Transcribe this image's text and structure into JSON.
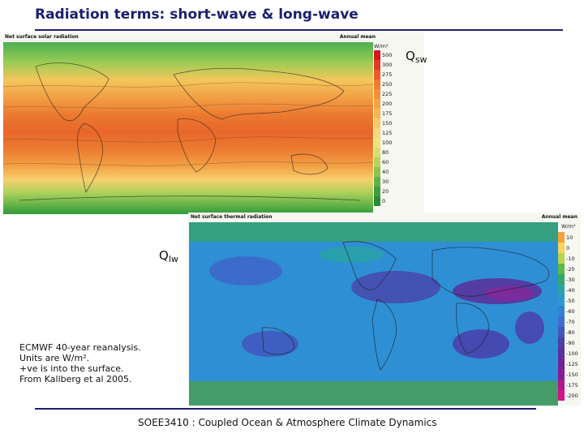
{
  "slide": {
    "title": "Radiation terms: short-wave & long-wave",
    "footer": "SOEE3410 : Coupled Ocean & Atmosphere Climate Dynamics",
    "note_lines": [
      "ECMWF 40-year reanalysis.",
      "Units are W/m².",
      "+ve is into the surface.",
      "From Kallberg et al 2005."
    ]
  },
  "labels": {
    "q_sw_main": "Q",
    "q_sw_sub": "sw",
    "q_lw_main": "Q",
    "q_lw_sub": "lw"
  },
  "shortwave_map": {
    "title": "Net surface solar radiation",
    "period": "Annual mean",
    "units": "W/m²",
    "colorbar": [
      {
        "value": "500",
        "color": "#d7191c"
      },
      {
        "value": "300",
        "color": "#e23a24"
      },
      {
        "value": "275",
        "color": "#ea5a2a"
      },
      {
        "value": "250",
        "color": "#ef7b2f"
      },
      {
        "value": "225",
        "color": "#f2913a"
      },
      {
        "value": "200",
        "color": "#f4a446"
      },
      {
        "value": "175",
        "color": "#f6b655"
      },
      {
        "value": "150",
        "color": "#f7c767"
      },
      {
        "value": "125",
        "color": "#f8d77c"
      },
      {
        "value": "100",
        "color": "#f2e27a"
      },
      {
        "value": "80",
        "color": "#d7e06a"
      },
      {
        "value": "60",
        "color": "#b6d55a"
      },
      {
        "value": "40",
        "color": "#8cc44f"
      },
      {
        "value": "30",
        "color": "#5fb245"
      },
      {
        "value": "20",
        "color": "#3c9f3c"
      },
      {
        "value": "0",
        "color": "#2a8a36"
      }
    ]
  },
  "longwave_map": {
    "title": "Net surface thermal radiation",
    "period": "Annual mean",
    "units": "W/m²",
    "colorbar": [
      {
        "value": "10",
        "color": "#f2a23a"
      },
      {
        "value": "0",
        "color": "#f6d55a"
      },
      {
        "value": "-10",
        "color": "#b8d44c"
      },
      {
        "value": "-20",
        "color": "#5fb848"
      },
      {
        "value": "-30",
        "color": "#34a86a"
      },
      {
        "value": "-40",
        "color": "#2aa3a8"
      },
      {
        "value": "-50",
        "color": "#2b9ad0"
      },
      {
        "value": "-60",
        "color": "#2f84d6"
      },
      {
        "value": "-70",
        "color": "#3b6fd0"
      },
      {
        "value": "-80",
        "color": "#4157bd"
      },
      {
        "value": "-90",
        "color": "#4a3faa"
      },
      {
        "value": "-100",
        "color": "#5a2f9a"
      },
      {
        "value": "-125",
        "color": "#6e2496"
      },
      {
        "value": "-150",
        "color": "#8a1a93"
      },
      {
        "value": "-175",
        "color": "#b0168f"
      },
      {
        "value": "-200",
        "color": "#d41488"
      }
    ]
  }
}
